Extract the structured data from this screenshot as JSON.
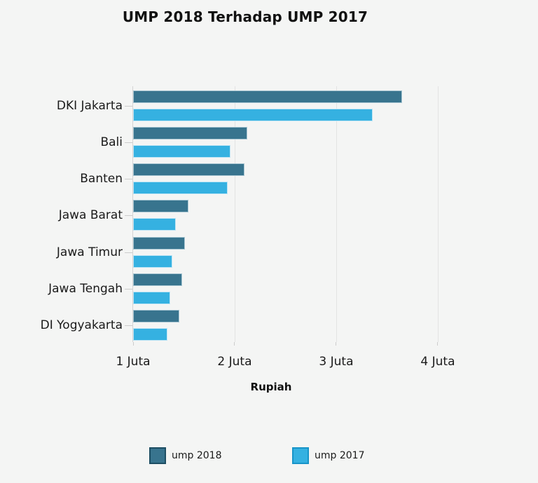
{
  "colors": {
    "background": "#f4f5f4",
    "axis_line": "#d4d4d4",
    "gridline": "#e3e3e3",
    "tick": "#cccccc",
    "text": "#1a1a1a"
  },
  "chart_data": {
    "type": "bar",
    "orientation": "horizontal",
    "title": "UMP 2018 Terhadap UMP 2017",
    "xlabel": "Rupiah",
    "categories": [
      "DKI Jakarta",
      "Bali",
      "Banten",
      "Jawa Barat",
      "Jawa Timur",
      "Jawa Tengah",
      "DI Yogyakarta"
    ],
    "series": [
      {
        "name": "ump 2018",
        "color": "#38748e",
        "bar_border": "#a9c7d3",
        "legend_border": "#1d4e63",
        "values": [
          3648035,
          2127157,
          2099385,
          1544360,
          1508895,
          1486065,
          1454154
        ]
      },
      {
        "name": "ump 2017",
        "color": "#35b1e1",
        "bar_border": "#bfe5f5",
        "legend_border": "#1794c8",
        "values": [
          3355750,
          1956727,
          1931180,
          1420624,
          1388000,
          1367000,
          1337645
        ]
      }
    ],
    "x_ticks": [
      {
        "value": 1000000,
        "label": "1 Juta"
      },
      {
        "value": 2000000,
        "label": "2 Juta"
      },
      {
        "value": 3000000,
        "label": "3 Juta"
      },
      {
        "value": 4000000,
        "label": "4 Juta"
      }
    ],
    "xlim": [
      1000000,
      4835000
    ],
    "grid": "vertical",
    "legend_position": "bottom"
  }
}
